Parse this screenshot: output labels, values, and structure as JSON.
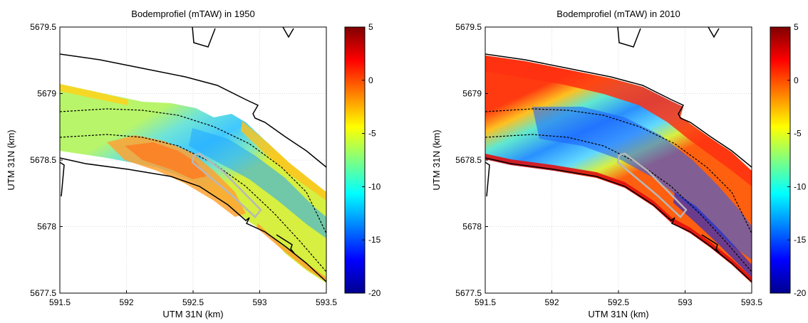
{
  "panels": [
    {
      "title": "Bodemprofiel (mTAW) in 1950",
      "year": 1950,
      "xlabel": "UTM 31N (km)",
      "ylabel": "UTM 31N (km)",
      "xlim": [
        591.5,
        593.5
      ],
      "ylim": [
        5677.5,
        5679.5
      ],
      "xticks": [
        "591.5",
        "592",
        "592.5",
        "593",
        "593.5"
      ],
      "yticks": [
        "5677.5",
        "5678",
        "5678.5",
        "5679",
        "5679.5"
      ],
      "colorbar": {
        "min": -20,
        "max": 5,
        "ticks": [
          "5",
          "0",
          "-5",
          "-10",
          "-15",
          "-20"
        ]
      }
    },
    {
      "title": "Bodemprofiel (mTAW) in 2010",
      "year": 2010,
      "xlabel": "UTM 31N (km)",
      "ylabel": "UTM 31N (km)",
      "xlim": [
        591.5,
        593.5
      ],
      "ylim": [
        5677.5,
        5679.5
      ],
      "xticks": [
        "591.5",
        "592",
        "592.5",
        "593",
        "593.5"
      ],
      "yticks": [
        "5677.5",
        "5678",
        "5678.5",
        "5679",
        "5679.5"
      ],
      "colorbar": {
        "min": -20,
        "max": 5,
        "ticks": [
          "5",
          "0",
          "-5",
          "-10",
          "-15",
          "-20"
        ]
      }
    }
  ],
  "colormap": "jet",
  "colors": {
    "shoreline": "#000000",
    "fairway_line": "#000000",
    "zone_outline": "#b8b8b8",
    "grid": "#d9d9d9"
  }
}
